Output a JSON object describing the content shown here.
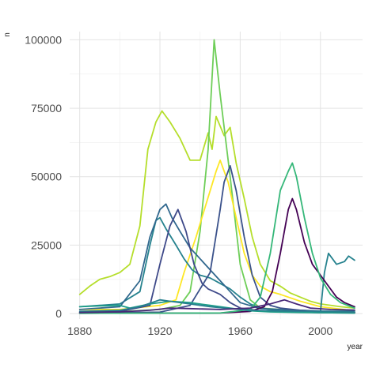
{
  "chart_data": {
    "type": "line",
    "title": "",
    "xlabel": "year",
    "ylabel": "n",
    "xlim": [
      1875,
      2021
    ],
    "ylim": [
      -2000,
      103000
    ],
    "x_ticks": [
      1880,
      1920,
      1960,
      2000
    ],
    "y_ticks": [
      0,
      25000,
      50000,
      75000,
      100000
    ],
    "y_tick_labels": [
      "0",
      "25000",
      "50000",
      "75000",
      "100000"
    ],
    "x_tick_labels": [
      "1880",
      "1920",
      "1960",
      "2000"
    ],
    "grid": true,
    "legend": "none",
    "series": [
      {
        "color": "#b5de2b",
        "points": [
          [
            1880,
            7000
          ],
          [
            1885,
            10000
          ],
          [
            1890,
            12500
          ],
          [
            1895,
            13500
          ],
          [
            1900,
            15000
          ],
          [
            1905,
            18000
          ],
          [
            1910,
            32000
          ],
          [
            1914,
            60000
          ],
          [
            1918,
            70000
          ],
          [
            1921,
            74000
          ],
          [
            1925,
            70000
          ],
          [
            1930,
            64000
          ],
          [
            1935,
            56000
          ],
          [
            1940,
            56000
          ],
          [
            1944,
            66000
          ],
          [
            1946,
            60000
          ],
          [
            1948,
            72000
          ],
          [
            1952,
            65000
          ],
          [
            1955,
            68000
          ],
          [
            1958,
            55000
          ],
          [
            1962,
            42000
          ],
          [
            1966,
            28000
          ],
          [
            1970,
            18000
          ],
          [
            1975,
            12000
          ],
          [
            1980,
            10000
          ],
          [
            1985,
            7500
          ],
          [
            1990,
            6000
          ],
          [
            1995,
            4500
          ],
          [
            2000,
            3500
          ],
          [
            2010,
            2500
          ],
          [
            2017,
            2000
          ]
        ]
      },
      {
        "color": "#6ece58",
        "points": [
          [
            1880,
            500
          ],
          [
            1900,
            700
          ],
          [
            1920,
            1500
          ],
          [
            1930,
            3000
          ],
          [
            1935,
            8000
          ],
          [
            1940,
            30000
          ],
          [
            1944,
            60000
          ],
          [
            1947,
            100000
          ],
          [
            1950,
            80000
          ],
          [
            1955,
            50000
          ],
          [
            1960,
            18000
          ],
          [
            1965,
            5000
          ],
          [
            1970,
            2000
          ],
          [
            1980,
            1500
          ],
          [
            2000,
            700
          ],
          [
            2017,
            400
          ]
        ]
      },
      {
        "color": "#fde725",
        "points": [
          [
            1880,
            1500
          ],
          [
            1900,
            1500
          ],
          [
            1920,
            3000
          ],
          [
            1928,
            5000
          ],
          [
            1932,
            15000
          ],
          [
            1938,
            28000
          ],
          [
            1943,
            40000
          ],
          [
            1948,
            52000
          ],
          [
            1950,
            56000
          ],
          [
            1954,
            48000
          ],
          [
            1958,
            35000
          ],
          [
            1962,
            22000
          ],
          [
            1966,
            14000
          ],
          [
            1970,
            10000
          ],
          [
            1975,
            8000
          ],
          [
            1980,
            7000
          ],
          [
            1990,
            4500
          ],
          [
            2000,
            2500
          ],
          [
            2017,
            1000
          ]
        ]
      },
      {
        "color": "#26828e",
        "points": [
          [
            1880,
            2500
          ],
          [
            1890,
            3000
          ],
          [
            1900,
            3500
          ],
          [
            1910,
            8000
          ],
          [
            1915,
            25000
          ],
          [
            1918,
            34000
          ],
          [
            1920,
            35000
          ],
          [
            1923,
            31000
          ],
          [
            1928,
            25000
          ],
          [
            1932,
            20000
          ],
          [
            1936,
            16000
          ],
          [
            1940,
            14000
          ],
          [
            1945,
            13000
          ],
          [
            1950,
            11000
          ],
          [
            1955,
            9000
          ],
          [
            1960,
            6000
          ],
          [
            1965,
            3500
          ],
          [
            1970,
            2000
          ],
          [
            1980,
            1000
          ],
          [
            1990,
            700
          ],
          [
            2000,
            600
          ],
          [
            2002,
            15000
          ],
          [
            2004,
            22000
          ],
          [
            2008,
            18000
          ],
          [
            2012,
            19000
          ],
          [
            2014,
            21000
          ],
          [
            2017,
            19500
          ]
        ]
      },
      {
        "color": "#31688e",
        "points": [
          [
            1880,
            1500
          ],
          [
            1900,
            2500
          ],
          [
            1910,
            12000
          ],
          [
            1915,
            28000
          ],
          [
            1920,
            38000
          ],
          [
            1923,
            40000
          ],
          [
            1926,
            35000
          ],
          [
            1930,
            30000
          ],
          [
            1935,
            24000
          ],
          [
            1940,
            20000
          ],
          [
            1945,
            16000
          ],
          [
            1950,
            12000
          ],
          [
            1955,
            8000
          ],
          [
            1960,
            4000
          ],
          [
            1970,
            1800
          ],
          [
            1980,
            1500
          ],
          [
            1990,
            1200
          ],
          [
            2000,
            900
          ],
          [
            2017,
            500
          ]
        ]
      },
      {
        "color": "#3e4989",
        "points": [
          [
            1880,
            300
          ],
          [
            1900,
            800
          ],
          [
            1915,
            3000
          ],
          [
            1920,
            18000
          ],
          [
            1925,
            32000
          ],
          [
            1929,
            38000
          ],
          [
            1933,
            30000
          ],
          [
            1937,
            18000
          ],
          [
            1941,
            11000
          ],
          [
            1944,
            9000
          ],
          [
            1947,
            8000
          ],
          [
            1950,
            7000
          ],
          [
            1955,
            4000
          ],
          [
            1960,
            2000
          ],
          [
            1970,
            1000
          ],
          [
            1980,
            800
          ],
          [
            2000,
            300
          ],
          [
            2017,
            200
          ]
        ]
      },
      {
        "color": "#3b528b",
        "points": [
          [
            1880,
            200
          ],
          [
            1920,
            500
          ],
          [
            1935,
            3000
          ],
          [
            1945,
            15000
          ],
          [
            1950,
            38000
          ],
          [
            1952,
            48000
          ],
          [
            1955,
            54000
          ],
          [
            1958,
            45000
          ],
          [
            1962,
            28000
          ],
          [
            1966,
            14000
          ],
          [
            1970,
            6000
          ],
          [
            1975,
            3000
          ],
          [
            1980,
            2000
          ],
          [
            1990,
            1200
          ],
          [
            2000,
            800
          ],
          [
            2017,
            400
          ]
        ]
      },
      {
        "color": "#440154",
        "points": [
          [
            1880,
            100
          ],
          [
            1950,
            200
          ],
          [
            1965,
            800
          ],
          [
            1972,
            2500
          ],
          [
            1976,
            8000
          ],
          [
            1980,
            22000
          ],
          [
            1984,
            38000
          ],
          [
            1986,
            42000
          ],
          [
            1988,
            38000
          ],
          [
            1992,
            26000
          ],
          [
            1996,
            18000
          ],
          [
            2000,
            14000
          ],
          [
            2004,
            10000
          ],
          [
            2008,
            6000
          ],
          [
            2012,
            4000
          ],
          [
            2017,
            2500
          ]
        ]
      },
      {
        "color": "#35b779",
        "points": [
          [
            1880,
            100
          ],
          [
            1950,
            200
          ],
          [
            1965,
            1500
          ],
          [
            1970,
            6000
          ],
          [
            1975,
            22000
          ],
          [
            1980,
            45000
          ],
          [
            1984,
            52000
          ],
          [
            1986,
            55000
          ],
          [
            1988,
            50000
          ],
          [
            1992,
            35000
          ],
          [
            1996,
            22000
          ],
          [
            2000,
            13000
          ],
          [
            2005,
            7000
          ],
          [
            2010,
            4000
          ],
          [
            2017,
            2000
          ]
        ]
      },
      {
        "color": "#1f9e89",
        "points": [
          [
            1880,
            2500
          ],
          [
            1890,
            2800
          ],
          [
            1900,
            3000
          ],
          [
            1905,
            2000
          ],
          [
            1915,
            3500
          ],
          [
            1925,
            4500
          ],
          [
            1935,
            4000
          ],
          [
            1945,
            3000
          ],
          [
            1955,
            2000
          ],
          [
            1965,
            1000
          ],
          [
            1975,
            600
          ],
          [
            1990,
            400
          ],
          [
            2000,
            300
          ],
          [
            2017,
            200
          ]
        ]
      },
      {
        "color": "#277f8e",
        "points": [
          [
            1880,
            800
          ],
          [
            1900,
            1200
          ],
          [
            1910,
            2500
          ],
          [
            1920,
            5000
          ],
          [
            1925,
            4500
          ],
          [
            1935,
            3500
          ],
          [
            1945,
            2500
          ],
          [
            1955,
            1800
          ],
          [
            1965,
            1200
          ],
          [
            1980,
            900
          ],
          [
            2000,
            800
          ],
          [
            2017,
            900
          ]
        ]
      },
      {
        "color": "#482878",
        "points": [
          [
            1880,
            400
          ],
          [
            1900,
            600
          ],
          [
            1915,
            1200
          ],
          [
            1925,
            2000
          ],
          [
            1935,
            1800
          ],
          [
            1950,
            1500
          ],
          [
            1965,
            2000
          ],
          [
            1975,
            3500
          ],
          [
            1982,
            5000
          ],
          [
            1988,
            3500
          ],
          [
            1995,
            2000
          ],
          [
            2005,
            1500
          ],
          [
            2017,
            1300
          ]
        ]
      }
    ]
  }
}
